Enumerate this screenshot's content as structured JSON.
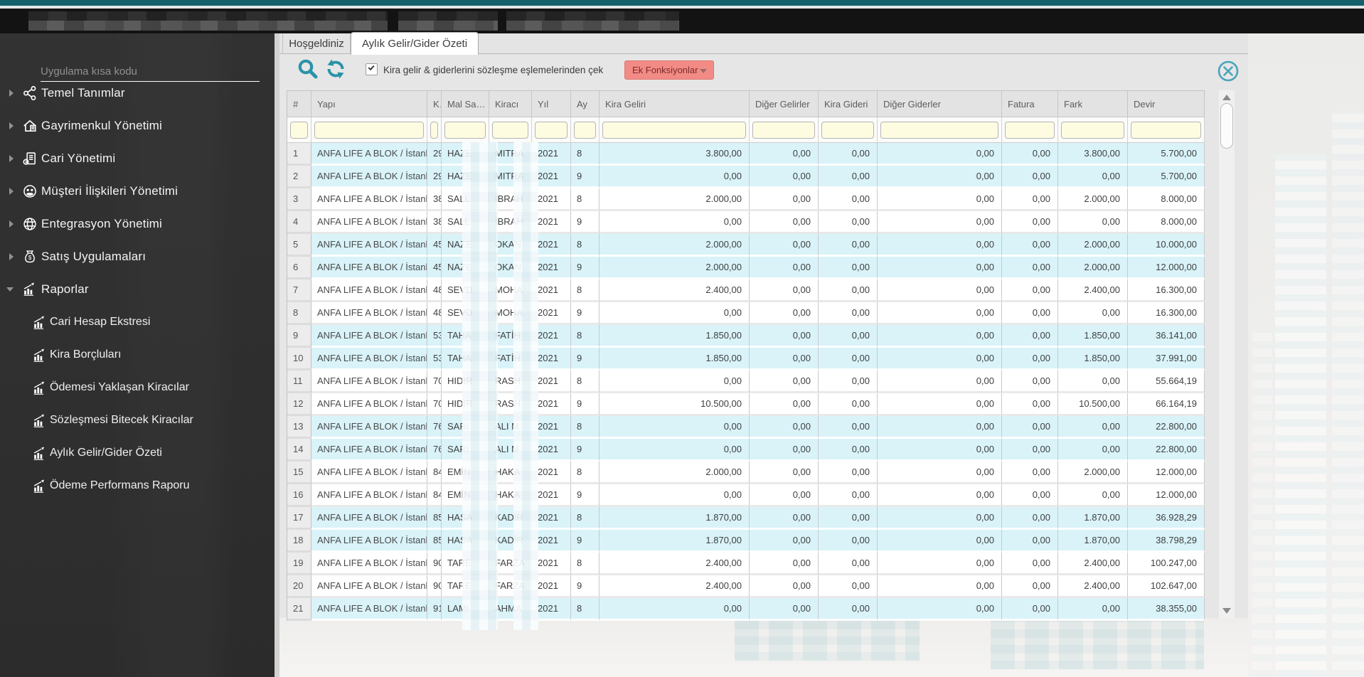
{
  "sidebar": {
    "search_placeholder": "Uygulama kısa kodu",
    "menu": [
      {
        "label": "Temel Tanımlar",
        "icon": "share-icon",
        "expanded": false
      },
      {
        "label": "Gayrimenkul Yönetimi",
        "icon": "home-icon",
        "expanded": false
      },
      {
        "label": "Cari Yönetimi",
        "icon": "ledger-icon",
        "expanded": false
      },
      {
        "label": "Müşteri İlişkileri Yönetimi",
        "icon": "people-icon",
        "expanded": false
      },
      {
        "label": "Entegrasyon Yönetimi",
        "icon": "globe-icon",
        "expanded": false
      },
      {
        "label": "Satış Uygulamaları",
        "icon": "money-bag-icon",
        "expanded": false
      },
      {
        "label": "Raporlar",
        "icon": "chart-icon",
        "expanded": true
      }
    ],
    "submenu": [
      "Cari Hesap Ekstresi",
      "Kira Borçluları",
      "Ödemesi Yaklaşan Kiracılar",
      "Sözleşmesi Bitecek Kiracılar",
      "Aylık Gelir/Gider Özeti",
      "Ödeme Performans Raporu"
    ]
  },
  "main": {
    "tabs": [
      {
        "label": "Hoşgeldiniz",
        "active": false
      },
      {
        "label": "Aylık Gelir/Gider Özeti",
        "active": true
      }
    ],
    "toolbar": {
      "checkbox_label": "Kira gelir & giderlerini sözleşme eşlemelerinden çek",
      "checkbox_checked": true,
      "extra_functions_label": "Ek Fonksiyonlar"
    },
    "table": {
      "columns": [
        "#",
        "Yapı",
        "K...",
        "Mal Sahini",
        "Kiracı",
        "Yıl",
        "Ay",
        "Kira Geliri",
        "Diğer Gelirler",
        "Kira Gideri",
        "Diğer Giderler",
        "Fatura",
        "Fark",
        "Devir"
      ],
      "filters": [
        "",
        "",
        "",
        "",
        "",
        "",
        "",
        "",
        "",
        "",
        "",
        "",
        "",
        ""
      ],
      "rows": [
        {
          "num": "1",
          "yapi": "ANFA LIFE A BLOK / İstanbul",
          "k": "29",
          "mal": "HAZE",
          "kiraci": "MITRA",
          "yil": "2021",
          "ay": "8",
          "kira_geliri": "3.800,00",
          "diger_gelirler": "0,00",
          "kira_gideri": "0,00",
          "diger_giderler": "0,00",
          "fatura": "0,00",
          "fark": "3.800,00",
          "devir": "5.700,00"
        },
        {
          "num": "2",
          "yapi": "ANFA LIFE A BLOK / İstanbul",
          "k": "29",
          "mal": "HAZE",
          "kiraci": "MITRA",
          "yil": "2021",
          "ay": "9",
          "kira_geliri": "0,00",
          "diger_gelirler": "0,00",
          "kira_gideri": "0,00",
          "diger_giderler": "0,00",
          "fatura": "0,00",
          "fark": "0,00",
          "devir": "5.700,00"
        },
        {
          "num": "3",
          "yapi": "ANFA LIFE A BLOK / İstanbul",
          "k": "38",
          "mal": "SALL",
          "kiraci": "İBRAH",
          "yil": "2021",
          "ay": "8",
          "kira_geliri": "2.000,00",
          "diger_gelirler": "0,00",
          "kira_gideri": "0,00",
          "diger_giderler": "0,00",
          "fatura": "0,00",
          "fark": "2.000,00",
          "devir": "8.000,00"
        },
        {
          "num": "4",
          "yapi": "ANFA LIFE A BLOK / İstanbul",
          "k": "38",
          "mal": "SALL",
          "kiraci": "İBRAH",
          "yil": "2021",
          "ay": "9",
          "kira_geliri": "0,00",
          "diger_gelirler": "0,00",
          "kira_gideri": "0,00",
          "diger_giderler": "0,00",
          "fatura": "0,00",
          "fark": "0,00",
          "devir": "8.000,00"
        },
        {
          "num": "5",
          "yapi": "ANFA LIFE A BLOK / İstanbul",
          "k": "45",
          "mal": "NAZE",
          "kiraci": "OKAN",
          "yil": "2021",
          "ay": "8",
          "kira_geliri": "2.000,00",
          "diger_gelirler": "0,00",
          "kira_gideri": "0,00",
          "diger_giderler": "0,00",
          "fatura": "0,00",
          "fark": "2.000,00",
          "devir": "10.000,00"
        },
        {
          "num": "6",
          "yapi": "ANFA LIFE A BLOK / İstanbul",
          "k": "45",
          "mal": "NAZE",
          "kiraci": "OKAN",
          "yil": "2021",
          "ay": "9",
          "kira_geliri": "2.000,00",
          "diger_gelirler": "0,00",
          "kira_gideri": "0,00",
          "diger_giderler": "0,00",
          "fatura": "0,00",
          "fark": "2.000,00",
          "devir": "12.000,00"
        },
        {
          "num": "7",
          "yapi": "ANFA LIFE A BLOK / İstanbul",
          "k": "48",
          "mal": "SEVD",
          "kiraci": "MOHA",
          "yil": "2021",
          "ay": "8",
          "kira_geliri": "2.400,00",
          "diger_gelirler": "0,00",
          "kira_gideri": "0,00",
          "diger_giderler": "0,00",
          "fatura": "0,00",
          "fark": "2.400,00",
          "devir": "16.300,00"
        },
        {
          "num": "8",
          "yapi": "ANFA LIFE A BLOK / İstanbul",
          "k": "48",
          "mal": "SEVD",
          "kiraci": "MOHA",
          "yil": "2021",
          "ay": "9",
          "kira_geliri": "0,00",
          "diger_gelirler": "0,00",
          "kira_gideri": "0,00",
          "diger_giderler": "0,00",
          "fatura": "0,00",
          "fark": "0,00",
          "devir": "16.300,00"
        },
        {
          "num": "9",
          "yapi": "ANFA LIFE A BLOK / İstanbul",
          "k": "53",
          "mal": "TAHA",
          "kiraci": "FATİH",
          "yil": "2021",
          "ay": "8",
          "kira_geliri": "1.850,00",
          "diger_gelirler": "0,00",
          "kira_gideri": "0,00",
          "diger_giderler": "0,00",
          "fatura": "0,00",
          "fark": "1.850,00",
          "devir": "36.141,00"
        },
        {
          "num": "10",
          "yapi": "ANFA LIFE A BLOK / İstanbul",
          "k": "53",
          "mal": "TAHA",
          "kiraci": "FATİH",
          "yil": "2021",
          "ay": "9",
          "kira_geliri": "1.850,00",
          "diger_gelirler": "0,00",
          "kira_gideri": "0,00",
          "diger_giderler": "0,00",
          "fatura": "0,00",
          "fark": "1.850,00",
          "devir": "37.991,00"
        },
        {
          "num": "11",
          "yapi": "ANFA LIFE A BLOK / İstanbul",
          "k": "70",
          "mal": "HIDIR",
          "kiraci": "RASH",
          "yil": "2021",
          "ay": "8",
          "kira_geliri": "0,00",
          "diger_gelirler": "0,00",
          "kira_gideri": "0,00",
          "diger_giderler": "0,00",
          "fatura": "0,00",
          "fark": "0,00",
          "devir": "55.664,19"
        },
        {
          "num": "12",
          "yapi": "ANFA LIFE A BLOK / İstanbul",
          "k": "70",
          "mal": "HIDIR",
          "kiraci": "RASH",
          "yil": "2021",
          "ay": "9",
          "kira_geliri": "10.500,00",
          "diger_gelirler": "0,00",
          "kira_gideri": "0,00",
          "diger_giderler": "0,00",
          "fatura": "0,00",
          "fark": "10.500,00",
          "devir": "66.164,19"
        },
        {
          "num": "13",
          "yapi": "ANFA LIFE A BLOK / İstanbul",
          "k": "76",
          "mal": "SARİ",
          "kiraci": "ALI M",
          "yil": "2021",
          "ay": "8",
          "kira_geliri": "0,00",
          "diger_gelirler": "0,00",
          "kira_gideri": "0,00",
          "diger_giderler": "0,00",
          "fatura": "0,00",
          "fark": "0,00",
          "devir": "22.800,00"
        },
        {
          "num": "14",
          "yapi": "ANFA LIFE A BLOK / İstanbul",
          "k": "76",
          "mal": "SARİ",
          "kiraci": "ALI M",
          "yil": "2021",
          "ay": "9",
          "kira_geliri": "0,00",
          "diger_gelirler": "0,00",
          "kira_gideri": "0,00",
          "diger_giderler": "0,00",
          "fatura": "0,00",
          "fark": "0,00",
          "devir": "22.800,00"
        },
        {
          "num": "15",
          "yapi": "ANFA LIFE A BLOK / İstanbul",
          "k": "84",
          "mal": "EMİN",
          "kiraci": "HAKA",
          "yil": "2021",
          "ay": "8",
          "kira_geliri": "2.000,00",
          "diger_gelirler": "0,00",
          "kira_gideri": "0,00",
          "diger_giderler": "0,00",
          "fatura": "0,00",
          "fark": "2.000,00",
          "devir": "12.000,00"
        },
        {
          "num": "16",
          "yapi": "ANFA LIFE A BLOK / İstanbul",
          "k": "84",
          "mal": "EMİN",
          "kiraci": "HAKA",
          "yil": "2021",
          "ay": "9",
          "kira_geliri": "0,00",
          "diger_gelirler": "0,00",
          "kira_gideri": "0,00",
          "diger_giderler": "0,00",
          "fatura": "0,00",
          "fark": "0,00",
          "devir": "12.000,00"
        },
        {
          "num": "17",
          "yapi": "ANFA LIFE A BLOK / İstanbul",
          "k": "85",
          "mal": "HASA",
          "kiraci": "KADİR",
          "yil": "2021",
          "ay": "8",
          "kira_geliri": "1.870,00",
          "diger_gelirler": "0,00",
          "kira_gideri": "0,00",
          "diger_giderler": "0,00",
          "fatura": "0,00",
          "fark": "1.870,00",
          "devir": "36.928,29"
        },
        {
          "num": "18",
          "yapi": "ANFA LIFE A BLOK / İstanbul",
          "k": "85",
          "mal": "HASA",
          "kiraci": "KADİR",
          "yil": "2021",
          "ay": "9",
          "kira_geliri": "1.870,00",
          "diger_gelirler": "0,00",
          "kira_gideri": "0,00",
          "diger_giderler": "0,00",
          "fatura": "0,00",
          "fark": "1.870,00",
          "devir": "38.798,29"
        },
        {
          "num": "19",
          "yapi": "ANFA LIFE A BLOK / İstanbul",
          "k": "90",
          "mal": "TARE",
          "kiraci": "FARZA",
          "yil": "2021",
          "ay": "8",
          "kira_geliri": "2.400,00",
          "diger_gelirler": "0,00",
          "kira_gideri": "0,00",
          "diger_giderler": "0,00",
          "fatura": "0,00",
          "fark": "2.400,00",
          "devir": "100.247,00"
        },
        {
          "num": "20",
          "yapi": "ANFA LIFE A BLOK / İstanbul",
          "k": "90",
          "mal": "TARE",
          "kiraci": "FARZA",
          "yil": "2021",
          "ay": "9",
          "kira_geliri": "2.400,00",
          "diger_gelirler": "0,00",
          "kira_gideri": "0,00",
          "diger_giderler": "0,00",
          "fatura": "0,00",
          "fark": "2.400,00",
          "devir": "102.647,00"
        },
        {
          "num": "21",
          "yapi": "ANFA LIFE A BLOK / İstanbul",
          "k": "91",
          "mal": "LAMI",
          "kiraci": "AHMA",
          "yil": "2021",
          "ay": "8",
          "kira_geliri": "0,00",
          "diger_gelirler": "0,00",
          "kira_gideri": "0,00",
          "diger_giderler": "0,00",
          "fatura": "0,00",
          "fark": "0,00",
          "devir": "38.355,00"
        }
      ]
    }
  },
  "colors": {
    "titlebar_teal": "#14616c",
    "accent_teal": "#2a93a8",
    "extra_functions_bg": "#f28b86",
    "row_highlight": "#d9f3f9",
    "filter_yellow": "#fdfce1"
  }
}
